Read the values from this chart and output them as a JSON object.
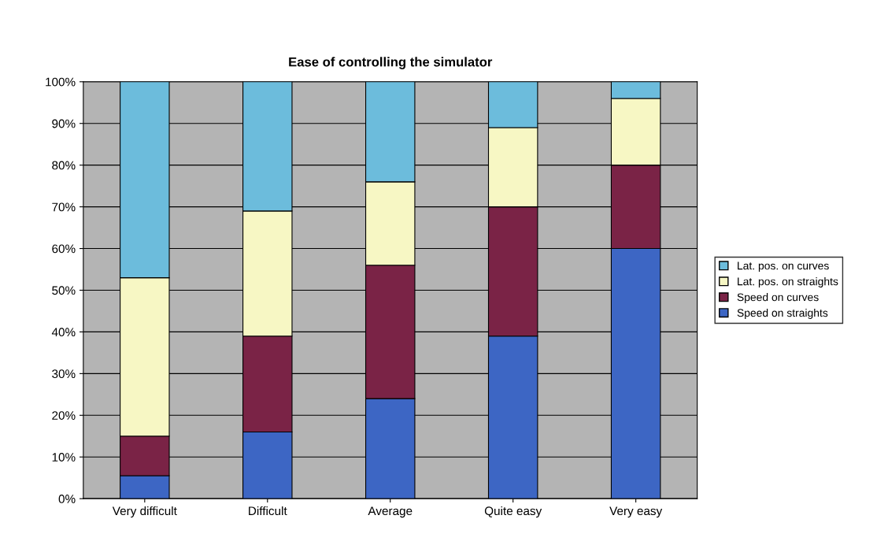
{
  "chart_data": {
    "type": "bar",
    "title": "Ease of controlling the simulator",
    "categories": [
      "Very difficult",
      "Difficult",
      "Average",
      "Quite easy",
      "Very easy"
    ],
    "stacked": true,
    "series": [
      {
        "name": "Speed on straights",
        "color": "#3d66c4",
        "values": [
          5.5,
          16,
          24,
          39,
          60
        ]
      },
      {
        "name": "Speed on curves",
        "color": "#7a2346",
        "values": [
          9.5,
          23,
          32,
          31,
          20
        ]
      },
      {
        "name": "Lat. pos. on straights",
        "color": "#f7f7c4",
        "values": [
          38,
          30,
          20,
          19,
          16
        ]
      },
      {
        "name": "Lat. pos. on curves",
        "color": "#6cbcdc",
        "values": [
          47,
          31,
          24,
          11,
          4
        ]
      }
    ],
    "ylim": [
      0,
      100
    ],
    "yticks": [
      {
        "value": 0,
        "label": "0%"
      },
      {
        "value": 10,
        "label": "10%"
      },
      {
        "value": 20,
        "label": "20%"
      },
      {
        "value": 30,
        "label": "30%"
      },
      {
        "value": 40,
        "label": "40%"
      },
      {
        "value": 50,
        "label": "50%"
      },
      {
        "value": 60,
        "label": "60%"
      },
      {
        "value": 70,
        "label": "70%"
      },
      {
        "value": 80,
        "label": "80%"
      },
      {
        "value": 90,
        "label": "90%"
      },
      {
        "value": 100,
        "label": "100%"
      }
    ],
    "grid": "y",
    "legend": "right"
  }
}
